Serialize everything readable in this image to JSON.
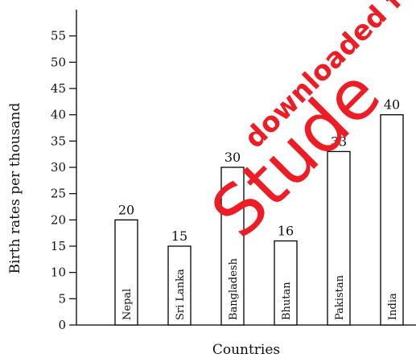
{
  "chart_data": {
    "type": "bar",
    "categories": [
      "Nepal",
      "Sri Lanka",
      "Bangladesh",
      "Bhutan",
      "Pakistan",
      "India"
    ],
    "values": [
      20,
      15,
      30,
      16,
      33,
      40
    ],
    "data_labels": [
      "20",
      "15",
      "30",
      "16",
      "33",
      "40"
    ],
    "xlabel": "Countries",
    "ylabel": "Birth rates per thousand",
    "ylim": [
      0,
      55
    ],
    "yticks": [
      "0",
      "5",
      "10",
      "15",
      "20",
      "25",
      "30",
      "35",
      "40",
      "45",
      "50",
      "55"
    ],
    "grid": false,
    "category_label_placement": "inside bars, vertical",
    "colors": {
      "bar_fill": "#ffffff",
      "bar_stroke": "#000000",
      "watermark": "#ee1c24"
    }
  },
  "watermark": {
    "line1": "downloaded f",
    "line2": "Stude"
  }
}
